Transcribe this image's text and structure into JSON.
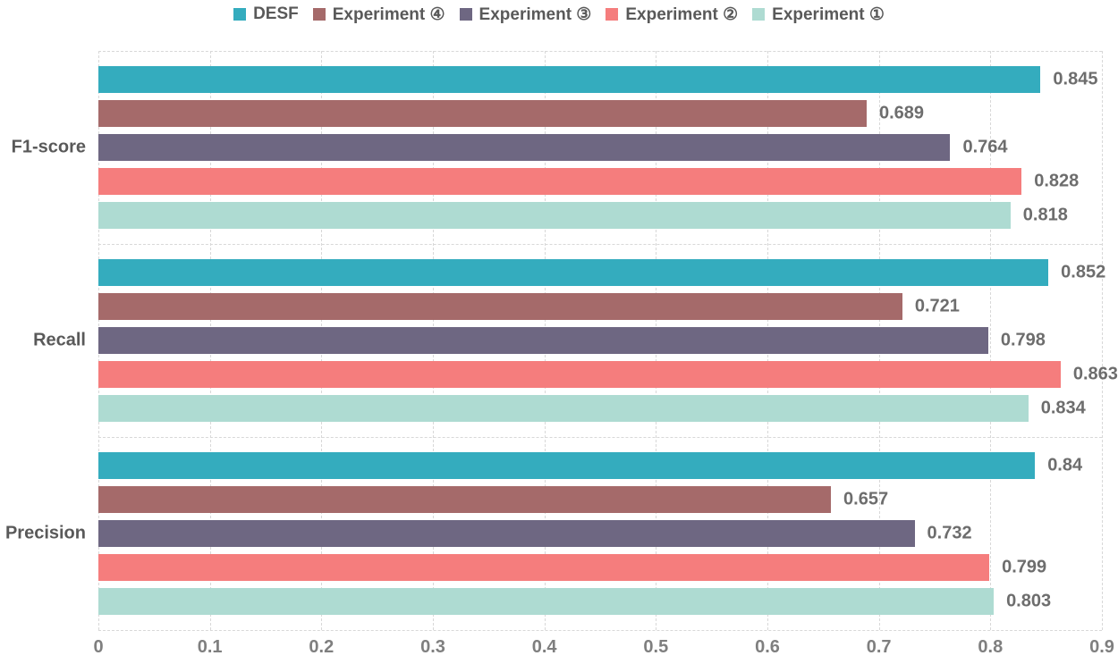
{
  "chart_data": {
    "type": "bar",
    "orientation": "horizontal",
    "title": "",
    "xlabel": "",
    "ylabel": "",
    "categories": [
      "F1-score",
      "Recall",
      "Precision"
    ],
    "series": [
      {
        "name": "DESF",
        "color": "#34acbe",
        "values": [
          0.845,
          0.852,
          0.84
        ]
      },
      {
        "name": "Experiment ④",
        "color": "#a56a6a",
        "values": [
          0.689,
          0.721,
          0.657
        ]
      },
      {
        "name": "Experiment ③",
        "color": "#6e6782",
        "values": [
          0.764,
          0.798,
          0.732
        ]
      },
      {
        "name": "Experiment ②",
        "color": "#f57d7d",
        "values": [
          0.828,
          0.863,
          0.799
        ]
      },
      {
        "name": "Experiment ①",
        "color": "#aedbd2",
        "values": [
          0.818,
          0.834,
          0.803
        ]
      }
    ],
    "x_ticks": [
      "0",
      "0.1",
      "0.2",
      "0.3",
      "0.4",
      "0.5",
      "0.6",
      "0.7",
      "0.8",
      "0.9"
    ],
    "xlim": [
      0,
      0.9
    ],
    "grid": "dashed-vertical-per-tick-and-horizontal-category-boundaries",
    "legend_position": "top-center",
    "value_labels": "right-of-bar"
  },
  "colors": {
    "background": "#ffffff",
    "grid": "#d8d8d8",
    "legend_text": "#595959",
    "category_text": "#595959",
    "value_text": "#6d6d6d",
    "tick_text": "#7f7f7f"
  }
}
